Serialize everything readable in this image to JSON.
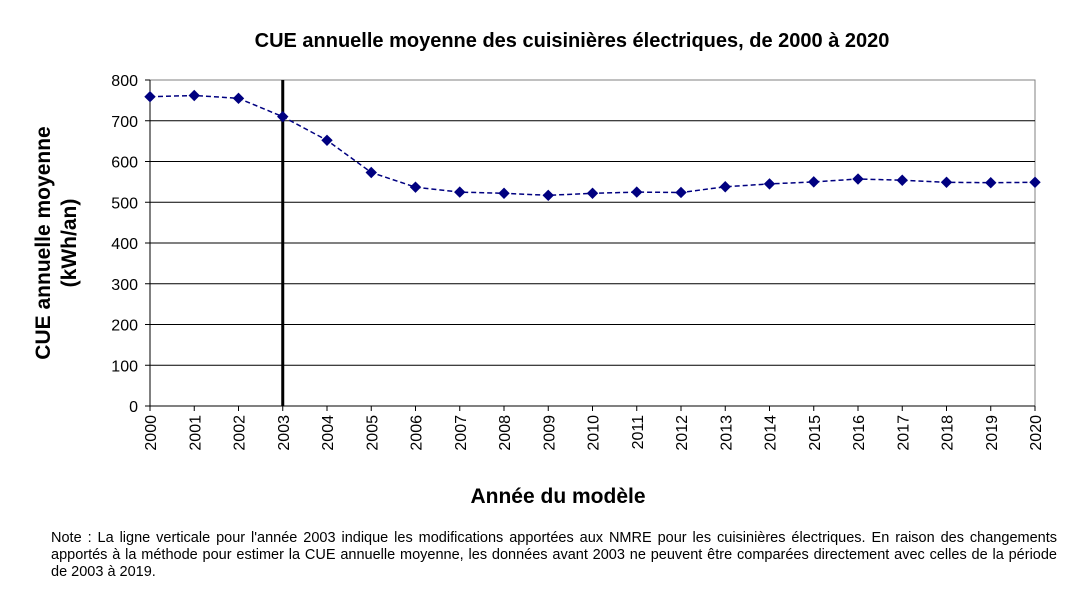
{
  "chart_data": {
    "type": "line",
    "title": "CUE annuelle moyenne des cuisinières électriques, de 2000 à 2020",
    "xlabel": "Année du modèle",
    "ylabel_line1": "CUE annuelle moyenne",
    "ylabel_line2": "(kWh/an)",
    "ylim": [
      0,
      800
    ],
    "yticks": [
      "0",
      "100",
      "200",
      "300",
      "400",
      "500",
      "600",
      "700",
      "800"
    ],
    "categories": [
      "2000",
      "2001",
      "2002",
      "2003",
      "2004",
      "2005",
      "2006",
      "2007",
      "2008",
      "2009",
      "2010",
      "2011",
      "2012",
      "2013",
      "2014",
      "2015",
      "2016",
      "2017",
      "2018",
      "2019",
      "2020"
    ],
    "values": [
      759,
      762,
      755,
      710,
      652,
      573,
      537,
      525,
      522,
      517,
      522,
      525,
      524,
      538,
      545,
      550,
      557,
      554,
      549,
      548,
      549
    ],
    "vertical_marker_category": "2003",
    "grid": "horizontal",
    "line_style": "dashed",
    "marker": "diamond",
    "series_color": "#000080"
  },
  "note": "Note : La ligne verticale pour l'année 2003 indique les modifications apportées aux NMRE pour les cuisinières électriques. En raison des changements apportés à la méthode pour estimer la CUE annuelle moyenne, les données avant 2003 ne peuvent être comparées directement avec celles de la période de 2003 à 2019."
}
